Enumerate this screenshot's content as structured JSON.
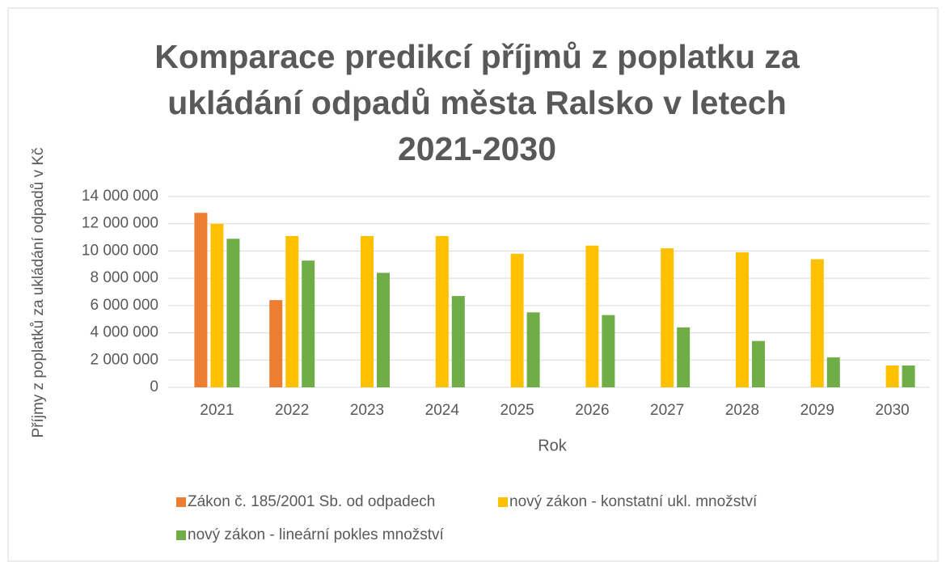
{
  "chart_data": {
    "type": "bar",
    "title": "Komparace predikcí příjmů z poplatku za ukládání odpadů města Ralsko v letech 2021-2030",
    "xlabel": "Rok",
    "ylabel": "Příjmy z poplatků za ukládání odpadů v Kč",
    "categories": [
      "2021",
      "2022",
      "2023",
      "2024",
      "2025",
      "2026",
      "2027",
      "2028",
      "2029",
      "2030"
    ],
    "series": [
      {
        "name": "Zákon č. 185/2001 Sb. od odpadech",
        "color": "#ed7d31",
        "values": [
          12800000,
          6400000,
          null,
          null,
          null,
          null,
          null,
          null,
          null,
          null
        ]
      },
      {
        "name": "nový zákon - konstatní ukl. množství",
        "color": "#ffc000",
        "values": [
          12000000,
          11100000,
          11100000,
          11100000,
          9800000,
          10400000,
          10200000,
          9900000,
          9400000,
          1600000
        ]
      },
      {
        "name": "nový zákon - lineární pokles množství",
        "color": "#70ad47",
        "values": [
          10900000,
          9300000,
          8400000,
          6700000,
          5500000,
          5300000,
          4400000,
          3400000,
          2200000,
          1600000
        ]
      }
    ],
    "ylim": [
      0,
      14000000
    ],
    "yticks": [
      {
        "value": 0,
        "label": "0"
      },
      {
        "value": 2000000,
        "label": "2 000 000"
      },
      {
        "value": 4000000,
        "label": "4 000 000"
      },
      {
        "value": 6000000,
        "label": "6 000 000"
      },
      {
        "value": 8000000,
        "label": "8 000 000"
      },
      {
        "value": 10000000,
        "label": "10 000 000"
      },
      {
        "value": 12000000,
        "label": "12 000 000"
      },
      {
        "value": 14000000,
        "label": "14 000 000"
      }
    ],
    "grid": true,
    "legend": "bottom"
  }
}
